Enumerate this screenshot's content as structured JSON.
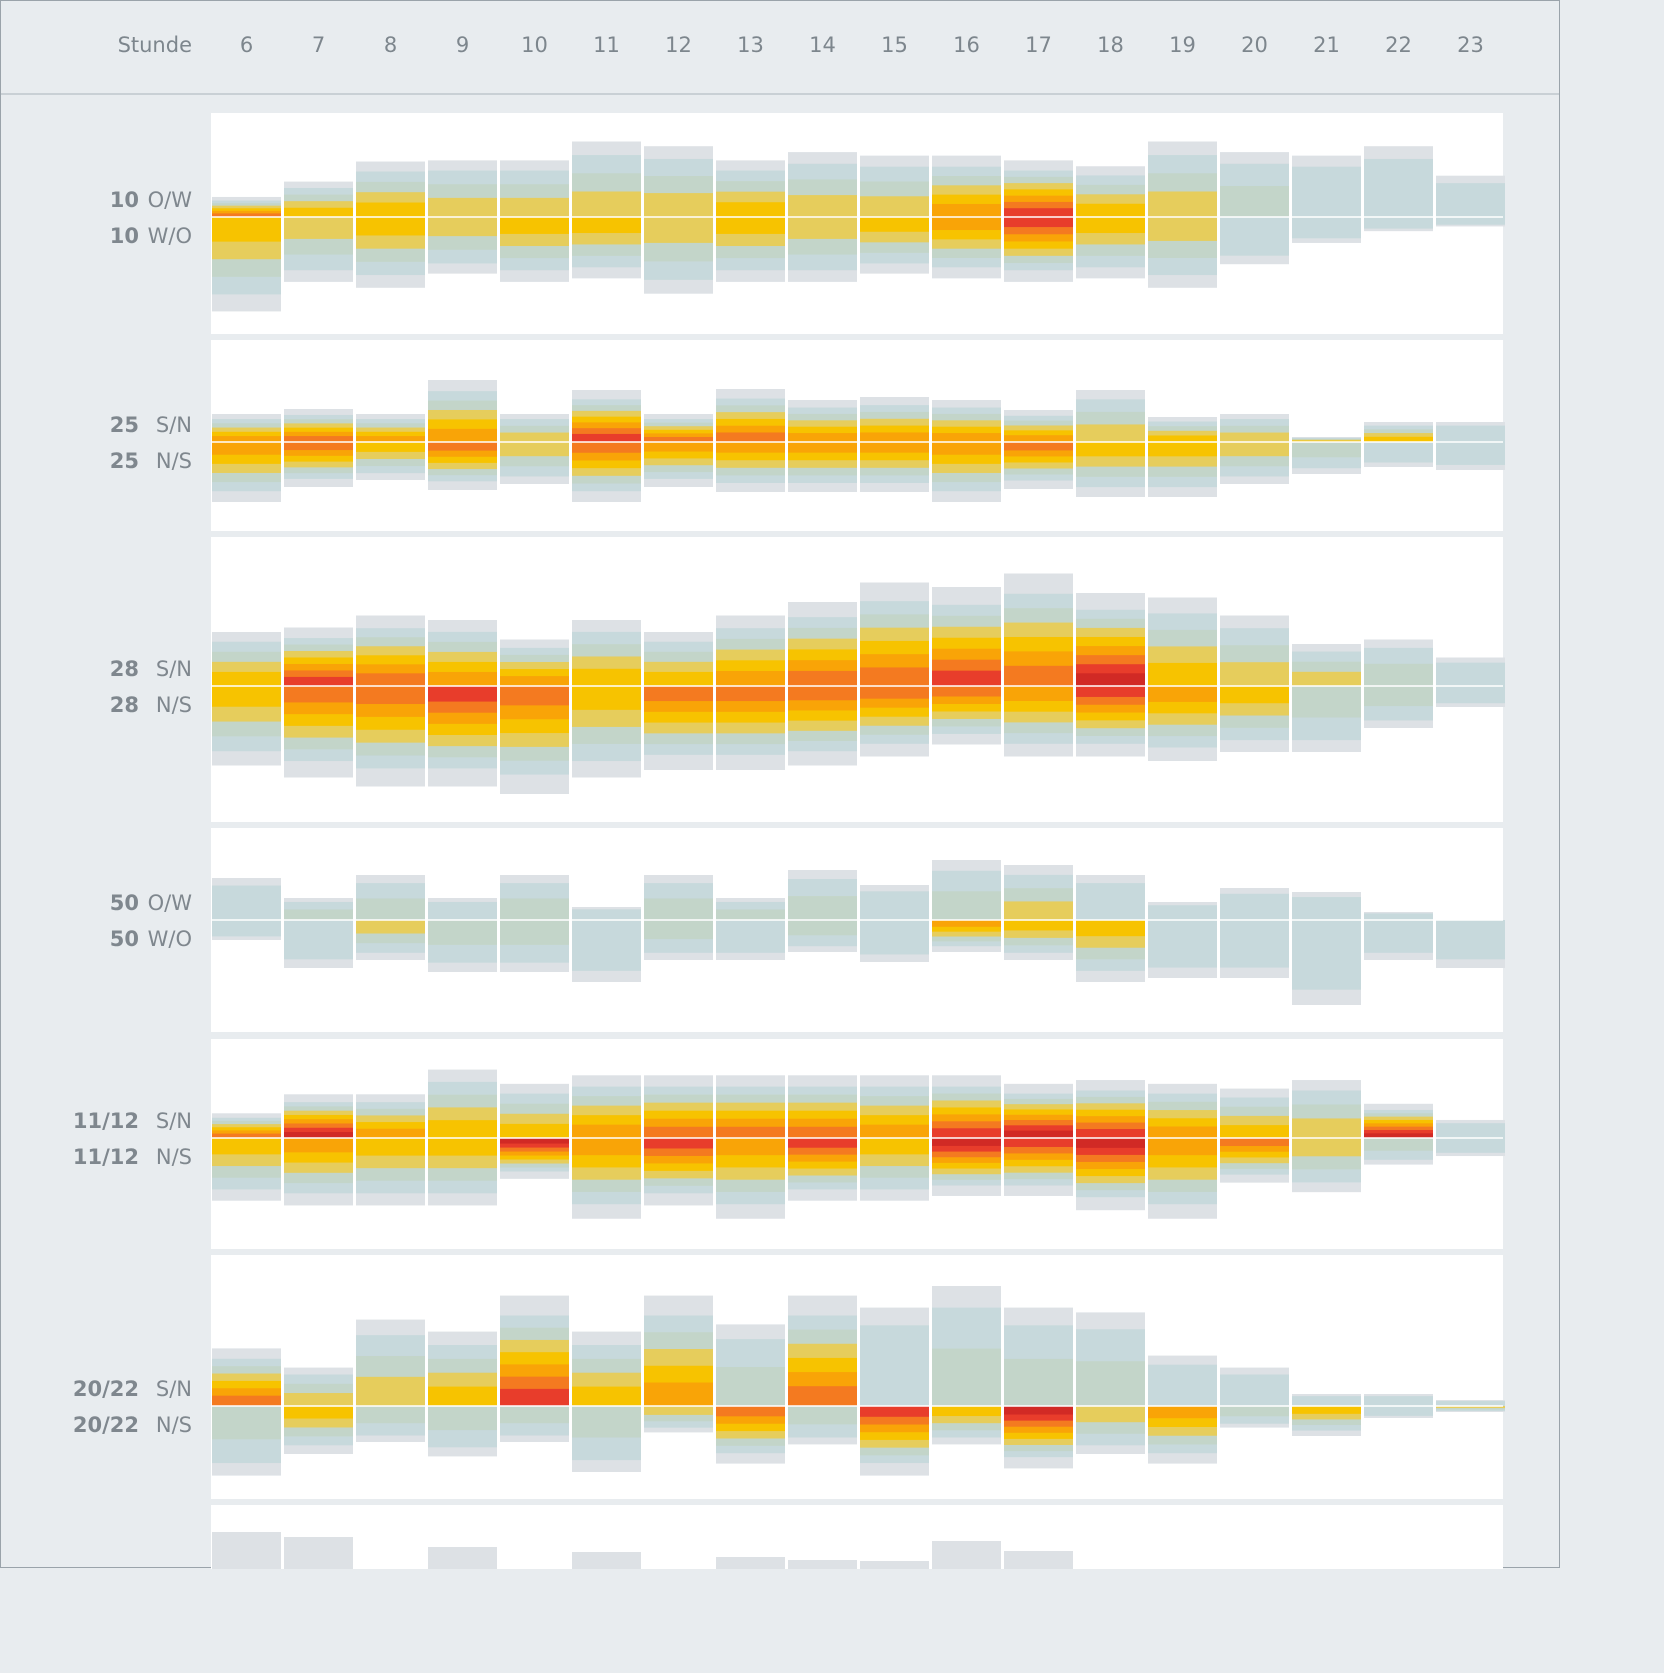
{
  "header": {
    "hour_label": "Stunde",
    "hours": [
      "6",
      "7",
      "8",
      "9",
      "10",
      "11",
      "12",
      "13",
      "14",
      "15",
      "16",
      "17",
      "18",
      "19",
      "20",
      "21",
      "22",
      "23"
    ]
  },
  "colors": {
    "page_bg": "#e8ecef",
    "panel_bg": "#ffffff",
    "volume": "#dde1e5",
    "scale": [
      "#c2d7da",
      "#c3d5c9",
      "#e6cd5c",
      "#f7c300",
      "#f9a407",
      "#f47a20",
      "#e83d2b",
      "#d12a25"
    ]
  },
  "chart_data": {
    "type": "heatmap",
    "title": "",
    "xlabel": "Stunde",
    "x": [
      6,
      7,
      8,
      9,
      10,
      11,
      12,
      13,
      14,
      15,
      16,
      17,
      18,
      19,
      20,
      21,
      22,
      23
    ],
    "value_units": "relative (volume 0–1 of panel half-height, congestion level 0–7)",
    "panels": [
      {
        "num_top": "10",
        "dir_top": "O/W",
        "num_bottom": "10",
        "dir_bottom": "W/O",
        "top_volume": [
          0.17,
          0.3,
          0.47,
          0.48,
          0.48,
          0.64,
          0.6,
          0.48,
          0.55,
          0.52,
          0.52,
          0.48,
          0.43,
          0.64,
          0.55,
          0.52,
          0.6,
          0.35
        ],
        "bottom_volume": [
          0.8,
          0.55,
          0.6,
          0.48,
          0.55,
          0.52,
          0.65,
          0.55,
          0.55,
          0.48,
          0.52,
          0.55,
          0.52,
          0.6,
          0.4,
          0.22,
          0.12,
          0.08
        ],
        "top_level": [
          5,
          3,
          3,
          2,
          2,
          2,
          2,
          3,
          2,
          2,
          4,
          6,
          3,
          2,
          1,
          0,
          0,
          0
        ],
        "bottom_level": [
          3,
          2,
          3,
          2,
          3,
          3,
          2,
          3,
          2,
          3,
          4,
          6,
          3,
          2,
          0,
          0,
          0,
          0
        ]
      },
      {
        "num_top": "25",
        "dir_top": "S/N",
        "num_bottom": "25",
        "dir_bottom": "N/S",
        "top_volume": [
          0.28,
          0.33,
          0.28,
          0.62,
          0.28,
          0.52,
          0.28,
          0.53,
          0.42,
          0.45,
          0.42,
          0.32,
          0.52,
          0.25,
          0.28,
          0.05,
          0.2,
          0.2
        ],
        "bottom_volume": [
          0.6,
          0.45,
          0.38,
          0.48,
          0.42,
          0.6,
          0.45,
          0.5,
          0.5,
          0.5,
          0.6,
          0.47,
          0.55,
          0.55,
          0.42,
          0.32,
          0.25,
          0.28
        ],
        "top_level": [
          4,
          5,
          4,
          4,
          2,
          6,
          5,
          5,
          4,
          4,
          4,
          4,
          2,
          3,
          2,
          3,
          3,
          0
        ],
        "bottom_level": [
          4,
          5,
          3,
          5,
          2,
          5,
          4,
          4,
          4,
          4,
          4,
          5,
          3,
          3,
          2,
          1,
          0,
          0
        ]
      },
      {
        "num_top": "28",
        "dir_top": "S/N",
        "num_bottom": "28",
        "dir_bottom": "N/S",
        "top_volume": [
          0.36,
          0.39,
          0.47,
          0.44,
          0.31,
          0.44,
          0.36,
          0.47,
          0.56,
          0.69,
          0.66,
          0.75,
          0.62,
          0.59,
          0.47,
          0.28,
          0.31,
          0.19
        ],
        "bottom_volume": [
          0.53,
          0.61,
          0.67,
          0.67,
          0.72,
          0.61,
          0.56,
          0.56,
          0.53,
          0.47,
          0.39,
          0.47,
          0.47,
          0.5,
          0.44,
          0.44,
          0.28,
          0.14
        ],
        "top_level": [
          3,
          6,
          5,
          4,
          4,
          3,
          3,
          4,
          5,
          5,
          6,
          5,
          7,
          3,
          2,
          2,
          1,
          0
        ],
        "bottom_level": [
          3,
          5,
          5,
          6,
          5,
          3,
          5,
          5,
          5,
          5,
          5,
          4,
          6,
          4,
          3,
          1,
          1,
          0
        ]
      },
      {
        "num_top": "50",
        "dir_top": "O/W",
        "num_bottom": "50",
        "dir_bottom": "W/O",
        "top_volume": [
          0.42,
          0.22,
          0.45,
          0.22,
          0.45,
          0.13,
          0.45,
          0.22,
          0.5,
          0.35,
          0.6,
          0.55,
          0.45,
          0.18,
          0.32,
          0.28,
          0.08,
          0.0
        ],
        "bottom_volume": [
          0.2,
          0.48,
          0.4,
          0.52,
          0.52,
          0.62,
          0.4,
          0.4,
          0.32,
          0.42,
          0.32,
          0.4,
          0.62,
          0.58,
          0.58,
          0.85,
          0.4,
          0.48
        ],
        "top_level": [
          0,
          1,
          1,
          0,
          1,
          0,
          1,
          1,
          1,
          0,
          1,
          2,
          0,
          0,
          0,
          0,
          0,
          0
        ],
        "bottom_level": [
          0,
          0,
          2,
          1,
          1,
          0,
          1,
          0,
          1,
          0,
          4,
          3,
          3,
          0,
          0,
          0,
          0,
          0
        ]
      },
      {
        "num_top": "11/12",
        "dir_top": "S/N",
        "num_bottom": "11/12",
        "dir_bottom": "N/S",
        "top_volume": [
          0.26,
          0.46,
          0.46,
          0.72,
          0.57,
          0.66,
          0.66,
          0.66,
          0.66,
          0.66,
          0.66,
          0.57,
          0.61,
          0.57,
          0.52,
          0.61,
          0.36,
          0.19
        ],
        "bottom_volume": [
          0.66,
          0.71,
          0.71,
          0.71,
          0.43,
          0.85,
          0.71,
          0.85,
          0.66,
          0.66,
          0.61,
          0.61,
          0.76,
          0.85,
          0.47,
          0.57,
          0.28,
          0.19
        ],
        "top_level": [
          5,
          7,
          4,
          3,
          3,
          4,
          5,
          5,
          5,
          4,
          6,
          7,
          6,
          4,
          3,
          2,
          7,
          0
        ],
        "bottom_level": [
          3,
          4,
          3,
          3,
          7,
          4,
          6,
          4,
          6,
          3,
          7,
          6,
          7,
          4,
          5,
          2,
          1,
          0
        ]
      },
      {
        "num_top": "20/22",
        "dir_top": "S/N",
        "num_bottom": "20/22",
        "dir_bottom": "N/S",
        "top_volume": [
          0.48,
          0.32,
          0.72,
          0.62,
          0.92,
          0.62,
          0.92,
          0.68,
          0.92,
          0.82,
          1.0,
          0.82,
          0.78,
          0.42,
          0.32,
          0.1,
          0.1,
          0.05
        ],
        "bottom_volume": [
          0.58,
          0.4,
          0.3,
          0.42,
          0.3,
          0.55,
          0.22,
          0.48,
          0.32,
          0.58,
          0.32,
          0.52,
          0.4,
          0.48,
          0.18,
          0.25,
          0.1,
          0.05
        ],
        "top_level": [
          5,
          2,
          2,
          3,
          6,
          3,
          4,
          1,
          5,
          0,
          1,
          1,
          1,
          0,
          0,
          0,
          0,
          0
        ],
        "bottom_level": [
          1,
          3,
          1,
          1,
          1,
          1,
          2,
          5,
          1,
          6,
          3,
          7,
          2,
          4,
          1,
          3,
          0,
          2
        ]
      }
    ]
  }
}
